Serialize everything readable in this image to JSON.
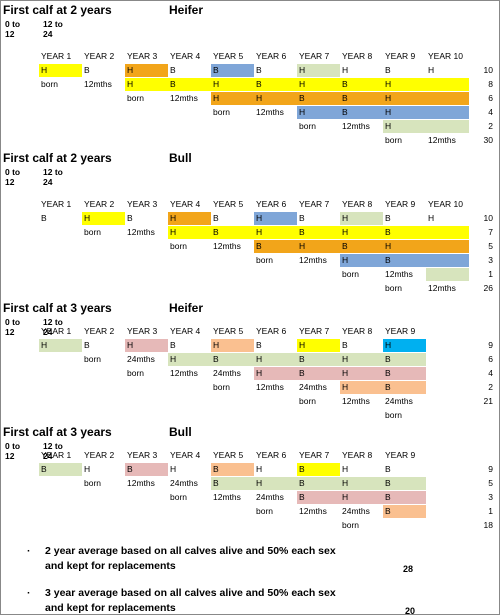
{
  "colors": {
    "Y": "#ffff00",
    "O": "#f2a51a",
    "Bl": "#7fa6d8",
    "G": "#d7e4bd",
    "P": "#e6b9b8",
    "C": "#fac090",
    "S": "#00b0f0"
  },
  "sections": [
    {
      "title": "First calf at 2 years",
      "sex": "Heifer",
      "ranges": [
        [
          "0 to",
          "12"
        ],
        [
          "12 to",
          "24"
        ]
      ],
      "years": [
        "YEAR 1",
        "YEAR 2",
        "YEAR 3",
        "YEAR 4",
        "YEAR 5",
        "YEAR 6",
        "YEAR 7",
        "YEAR 8",
        "YEAR 9",
        "YEAR 10"
      ],
      "rows": [
        {
          "cells": [
            {
              "t": "H",
              "c": "Y"
            },
            {
              "t": "B"
            },
            {
              "t": "H",
              "c": "O"
            },
            {
              "t": "B"
            },
            {
              "t": "B",
              "c": "Bl"
            },
            {
              "t": "B"
            },
            {
              "t": "H",
              "c": "G"
            },
            {
              "t": "H"
            },
            {
              "t": "B"
            },
            {
              "t": "H"
            }
          ],
          "total": 10
        },
        {
          "cells": [
            {
              "t": "born"
            },
            {
              "t": "12mths"
            },
            {
              "t": "H",
              "c": "Y"
            },
            {
              "t": "B",
              "c": "Y"
            },
            {
              "t": "H",
              "c": "Y"
            },
            {
              "t": "B",
              "c": "Y"
            },
            {
              "t": "H",
              "c": "Y"
            },
            {
              "t": "B",
              "c": "Y"
            },
            {
              "t": "H",
              "c": "Y"
            },
            {
              "c": "Y"
            }
          ],
          "total": 8
        },
        {
          "cells": [
            null,
            null,
            {
              "t": "born"
            },
            {
              "t": "12mths"
            },
            {
              "t": "H",
              "c": "O"
            },
            {
              "t": "H",
              "c": "O"
            },
            {
              "t": "B",
              "c": "O"
            },
            {
              "t": "B",
              "c": "O"
            },
            {
              "t": "H",
              "c": "O"
            },
            {
              "c": "O"
            }
          ],
          "total": 6
        },
        {
          "cells": [
            null,
            null,
            null,
            null,
            {
              "t": "born"
            },
            {
              "t": "12mths"
            },
            {
              "t": "H",
              "c": "Bl"
            },
            {
              "t": "B",
              "c": "Bl"
            },
            {
              "t": "H",
              "c": "Bl"
            },
            {
              "c": "Bl"
            }
          ],
          "total": 4
        },
        {
          "cells": [
            null,
            null,
            null,
            null,
            null,
            null,
            {
              "t": "born"
            },
            {
              "t": "12mths"
            },
            {
              "t": "H",
              "c": "G"
            },
            {
              "c": "G"
            }
          ],
          "total": 2
        },
        {
          "cells": [
            null,
            null,
            null,
            null,
            null,
            null,
            null,
            null,
            {
              "t": "born"
            },
            {
              "t": "12mths"
            }
          ],
          "total": 30
        }
      ]
    },
    {
      "title": "First calf at 2 years",
      "sex": "Bull",
      "ranges": [
        [
          "0 to",
          "12"
        ],
        [
          "12 to",
          "24"
        ]
      ],
      "years": [
        "YEAR 1",
        "YEAR 2",
        "YEAR 3",
        "YEAR 4",
        "YEAR 5",
        "YEAR 6",
        "YEAR 7",
        "YEAR 8",
        "YEAR 9",
        "YEAR 10"
      ],
      "rows": [
        {
          "cells": [
            {
              "t": "B"
            },
            {
              "t": "H",
              "c": "Y"
            },
            {
              "t": "B"
            },
            {
              "t": "H",
              "c": "O"
            },
            {
              "t": "B"
            },
            {
              "t": "H",
              "c": "Bl"
            },
            {
              "t": "B"
            },
            {
              "t": "H",
              "c": "G"
            },
            {
              "t": "B"
            },
            {
              "t": "H"
            }
          ],
          "total": 10
        },
        {
          "cells": [
            null,
            {
              "t": "born"
            },
            {
              "t": "12mths"
            },
            {
              "t": "H",
              "c": "Y"
            },
            {
              "t": "B",
              "c": "Y"
            },
            {
              "t": "H",
              "c": "Y"
            },
            {
              "t": "B",
              "c": "Y"
            },
            {
              "t": "H",
              "c": "Y"
            },
            {
              "t": "B",
              "c": "Y"
            },
            {
              "c": "Y"
            }
          ],
          "total": 7
        },
        {
          "cells": [
            null,
            null,
            null,
            {
              "t": "born"
            },
            {
              "t": "12mths"
            },
            {
              "t": "B",
              "c": "O"
            },
            {
              "t": "H",
              "c": "O"
            },
            {
              "t": "B",
              "c": "O"
            },
            {
              "t": "H",
              "c": "O"
            },
            {
              "c": "O"
            }
          ],
          "total": 5
        },
        {
          "cells": [
            null,
            null,
            null,
            null,
            null,
            {
              "t": "born"
            },
            {
              "t": "12mths"
            },
            {
              "t": "H",
              "c": "Bl"
            },
            {
              "t": "B",
              "c": "Bl"
            },
            {
              "c": "Bl"
            }
          ],
          "total": 3
        },
        {
          "cells": [
            null,
            null,
            null,
            null,
            null,
            null,
            null,
            {
              "t": "born"
            },
            {
              "t": "12mths"
            },
            {
              "c": "G"
            }
          ],
          "total": 1
        },
        {
          "cells": [
            null,
            null,
            null,
            null,
            null,
            null,
            null,
            null,
            {
              "t": "born"
            },
            {
              "t": "12mths"
            }
          ],
          "total": 26
        }
      ]
    },
    {
      "title": "First calf at 3 years",
      "sex": "Heifer",
      "ranges": [
        [
          "0 to",
          "12"
        ],
        [
          "12 to",
          "24"
        ]
      ],
      "years": [
        "YEAR 1",
        "YEAR 2",
        "YEAR 3",
        "YEAR 4",
        "YEAR 5",
        "YEAR 6",
        "YEAR 7",
        "YEAR 8",
        "YEAR 9"
      ],
      "rows": [
        {
          "cells": [
            {
              "t": "H",
              "c": "G"
            },
            {
              "t": "B"
            },
            {
              "t": "H",
              "c": "P"
            },
            {
              "t": "B"
            },
            {
              "t": "H",
              "c": "C"
            },
            {
              "t": "B"
            },
            {
              "t": "H",
              "c": "Y"
            },
            {
              "t": "B"
            },
            {
              "t": "H",
              "c": "S"
            }
          ],
          "total": 9
        },
        {
          "cells": [
            null,
            {
              "t": "born"
            },
            {
              "t": "24mths"
            },
            {
              "t": "H",
              "c": "G"
            },
            {
              "t": "B",
              "c": "G"
            },
            {
              "t": "H",
              "c": "G"
            },
            {
              "t": "B",
              "c": "G"
            },
            {
              "t": "H",
              "c": "G"
            },
            {
              "t": "B",
              "c": "G"
            }
          ],
          "total": 6
        },
        {
          "cells": [
            null,
            null,
            {
              "t": "born"
            },
            {
              "t": "12mths"
            },
            {
              "t": "24mths"
            },
            {
              "t": "H",
              "c": "P"
            },
            {
              "t": "B",
              "c": "P"
            },
            {
              "t": "H",
              "c": "P"
            },
            {
              "t": "B",
              "c": "P"
            }
          ],
          "total": 4
        },
        {
          "cells": [
            null,
            null,
            null,
            null,
            {
              "t": "born"
            },
            {
              "t": "12mths"
            },
            {
              "t": "24mths"
            },
            {
              "t": "H",
              "c": "C"
            },
            {
              "t": "B",
              "c": "C"
            }
          ],
          "total": 2
        },
        {
          "cells": [
            null,
            null,
            null,
            null,
            null,
            null,
            {
              "t": "born"
            },
            {
              "t": "12mths"
            },
            {
              "t": "24mths"
            }
          ],
          "total": 21
        },
        {
          "cells": [
            null,
            null,
            null,
            null,
            null,
            null,
            null,
            null,
            {
              "t": "born"
            }
          ]
        }
      ]
    },
    {
      "title": "First calf at 3 years",
      "sex": "Bull",
      "ranges": [
        [
          "0 to",
          "12"
        ],
        [
          "12 to",
          "24"
        ]
      ],
      "years": [
        "YEAR 1",
        "YEAR 2",
        "YEAR 3",
        "YEAR 4",
        "YEAR 5",
        "YEAR 6",
        "YEAR 7",
        "YEAR 8",
        "YEAR 9"
      ],
      "rows": [
        {
          "cells": [
            {
              "t": "B",
              "c": "G"
            },
            {
              "t": "H"
            },
            {
              "t": "B",
              "c": "P"
            },
            {
              "t": "H"
            },
            {
              "t": "B",
              "c": "C"
            },
            {
              "t": "H"
            },
            {
              "t": "B",
              "c": "Y"
            },
            {
              "t": "H"
            },
            {
              "t": "B"
            }
          ],
          "total": 9
        },
        {
          "cells": [
            null,
            {
              "t": "born"
            },
            {
              "t": "12mths"
            },
            {
              "t": "24mths"
            },
            {
              "t": "B",
              "c": "G"
            },
            {
              "t": "H",
              "c": "G"
            },
            {
              "t": "B",
              "c": "G"
            },
            {
              "t": "H",
              "c": "G"
            },
            {
              "t": "B",
              "c": "G"
            }
          ],
          "total": 5
        },
        {
          "cells": [
            null,
            null,
            null,
            {
              "t": "born"
            },
            {
              "t": "12mths"
            },
            {
              "t": "24mths"
            },
            {
              "t": "B",
              "c": "P"
            },
            {
              "t": "H",
              "c": "P"
            },
            {
              "t": "B",
              "c": "P"
            }
          ],
          "total": 3
        },
        {
          "cells": [
            null,
            null,
            null,
            null,
            null,
            {
              "t": "born"
            },
            {
              "t": "12mths"
            },
            {
              "t": "24mths"
            },
            {
              "t": "B",
              "c": "C"
            }
          ],
          "total": 1
        },
        {
          "cells": [
            null,
            null,
            null,
            null,
            null,
            null,
            null,
            {
              "t": "born"
            },
            null
          ],
          "total": 18
        }
      ]
    }
  ],
  "notes": [
    {
      "text": "2 year average based on all calves alive and 50% each sex and kept for replacements",
      "value": 28
    },
    {
      "text": "3 year average based on all calves alive and 50% each sex and kept for replacements",
      "value": 20
    }
  ]
}
